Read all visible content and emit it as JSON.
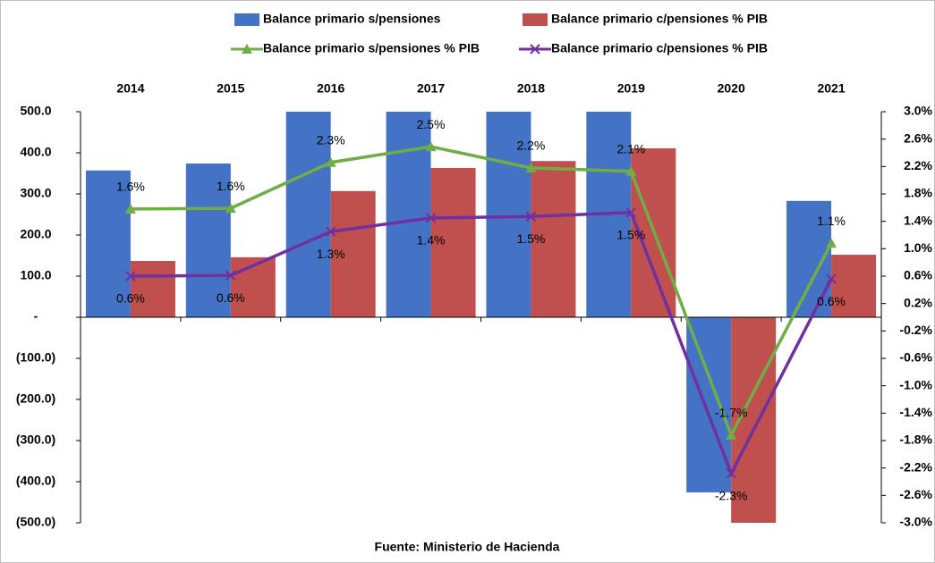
{
  "chart_data": {
    "type": "bar-line",
    "categories": [
      "2014",
      "2015",
      "2016",
      "2017",
      "2018",
      "2019",
      "2020",
      "2021"
    ],
    "series": [
      {
        "name": "Balance primario s/pensiones",
        "color": "#4472c4",
        "kind": "bar",
        "values": [
          357,
          374,
          500,
          500,
          500,
          500,
          -426,
          283
        ]
      },
      {
        "name": "Balance primario  c/pensiones % PIB",
        "color": "#c0504d",
        "kind": "bar",
        "values": [
          137,
          146,
          307,
          363,
          380,
          411,
          -500,
          152
        ]
      },
      {
        "name": "Balance primario  s/pensiones % PIB",
        "color": "#70ad47",
        "kind": "line",
        "marker": "triangle",
        "axis": "y2",
        "values": [
          1.58,
          1.59,
          2.26,
          2.49,
          2.18,
          2.13,
          -1.72,
          1.08
        ],
        "value_labels": [
          "1.6%",
          "1.6%",
          "2.3%",
          "2.5%",
          "2.2%",
          "2.1%",
          "-1.7%",
          "1.1%"
        ]
      },
      {
        "name": "Balance primario  c/pensiones % PIB",
        "color": "#7030a0",
        "kind": "line",
        "marker": "x",
        "axis": "y2",
        "values": [
          0.6,
          0.61,
          1.25,
          1.45,
          1.47,
          1.53,
          -2.28,
          0.56
        ],
        "value_labels": [
          "0.6%",
          "0.6%",
          "1.3%",
          "1.4%",
          "1.5%",
          "1.5%",
          "-2.3%",
          "0.6%"
        ]
      }
    ],
    "ylim": [
      -500,
      500
    ],
    "yticks": [
      {
        "value": 500,
        "label": "500.0"
      },
      {
        "value": 400,
        "label": "400.0"
      },
      {
        "value": 300,
        "label": "300.0"
      },
      {
        "value": 200,
        "label": "200.0"
      },
      {
        "value": 100,
        "label": "100.0"
      },
      {
        "value": 0,
        "label": "-"
      },
      {
        "value": -100,
        "label": "(100.0)"
      },
      {
        "value": -200,
        "label": "(200.0)"
      },
      {
        "value": -300,
        "label": "(300.0)"
      },
      {
        "value": -400,
        "label": "(400.0)"
      },
      {
        "value": -500,
        "label": "(500.0)"
      }
    ],
    "y2lim": [
      -3,
      3
    ],
    "y2ticks": [
      {
        "value": 3.0,
        "label": "3.0%"
      },
      {
        "value": 2.6,
        "label": "2.6%"
      },
      {
        "value": 2.2,
        "label": "2.2%"
      },
      {
        "value": 1.8,
        "label": "1.8%"
      },
      {
        "value": 1.4,
        "label": "1.4%"
      },
      {
        "value": 1.0,
        "label": "1.0%"
      },
      {
        "value": 0.6,
        "label": "0.6%"
      },
      {
        "value": 0.2,
        "label": "0.2%"
      },
      {
        "value": -0.2,
        "label": "-0.2%"
      },
      {
        "value": -0.6,
        "label": "-0.6%"
      },
      {
        "value": -1.0,
        "label": "-1.0%"
      },
      {
        "value": -1.4,
        "label": "-1.4%"
      },
      {
        "value": -1.8,
        "label": "-1.8%"
      },
      {
        "value": -2.2,
        "label": "-2.2%"
      },
      {
        "value": -2.6,
        "label": "-2.6%"
      },
      {
        "value": -3.0,
        "label": "-3.0%"
      }
    ],
    "source": "Fuente: Ministerio de Hacienda"
  }
}
